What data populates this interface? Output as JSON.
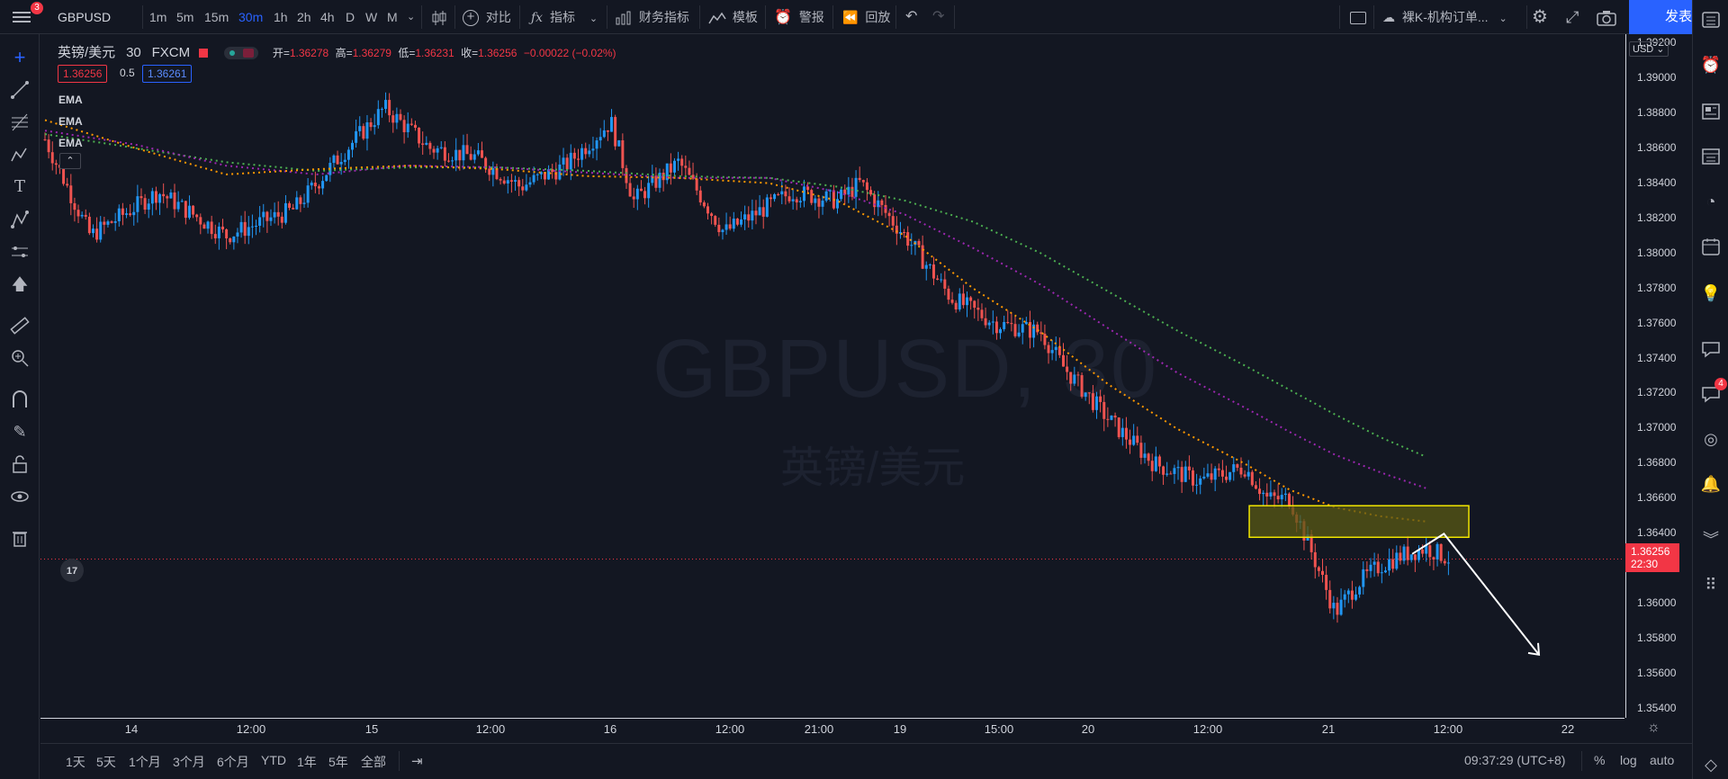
{
  "topbar": {
    "menu_badge": "3",
    "symbol": "GBPUSD",
    "timeframes": [
      "1m",
      "5m",
      "15m",
      "30m",
      "1h",
      "2h",
      "4h",
      "D",
      "W",
      "M"
    ],
    "active_timeframe": "30m",
    "compare_label": "对比",
    "indicators_label": "指标",
    "financials_label": "财务指标",
    "templates_label": "模板",
    "alert_label": "警报",
    "replay_label": "回放",
    "layout_name": "裸K-机构订单...",
    "publish_label": "发表"
  },
  "legend": {
    "title": "英镑/美元",
    "interval": "30",
    "exchange": "FXCM",
    "open_label": "开=",
    "open": "1.36278",
    "high_label": "高=",
    "high": "1.36279",
    "low_label": "低=",
    "low": "1.36231",
    "close_label": "收=",
    "close": "1.36256",
    "change": "−0.00022 (−0.02%)",
    "bid": "1.36256",
    "spread": "0.5",
    "ask": "1.36261",
    "ema_labels": [
      "EMA",
      "EMA",
      "EMA"
    ]
  },
  "watermark": {
    "symbol": "GBPUSD, 30",
    "name": "英镑/美元"
  },
  "price_scale": {
    "currency": "USD",
    "labels": [
      "1.39200",
      "1.39000",
      "1.38800",
      "1.38600",
      "1.38400",
      "1.38200",
      "1.38000",
      "1.37800",
      "1.37600",
      "1.37400",
      "1.37200",
      "1.37000",
      "1.36800",
      "1.36600",
      "1.36400",
      "1.36000",
      "1.35800",
      "1.35600",
      "1.35400"
    ],
    "current_price": "1.36256",
    "countdown": "22:30"
  },
  "time_axis": {
    "labels": [
      "14",
      "12:00",
      "15",
      "12:00",
      "16",
      "12:00",
      "21:00",
      "19",
      "15:00",
      "20",
      "12:00",
      "21",
      "12:00",
      "22"
    ]
  },
  "bottom": {
    "ranges": [
      "1天",
      "5天",
      "1个月",
      "3个月",
      "6个月",
      "YTD",
      "1年",
      "5年",
      "全部"
    ],
    "clock": "09:37:29 (UTC+8)",
    "percent": "%",
    "log": "log",
    "auto": "auto"
  },
  "right_toolbar": {
    "chat_badge": "4"
  },
  "colors": {
    "up": "#2196f3",
    "down": "#ef5350",
    "ema_fast": "#ff9800",
    "ema_mid": "#9c27b0",
    "ema_slow": "#4caf50",
    "zone_fill": "#5a5a14",
    "zone_stroke": "#f2e600",
    "accent": "#2962ff"
  },
  "chart_data": {
    "type": "candlestick",
    "ylim": [
      1.354,
      1.3925
    ],
    "zone": {
      "top": 1.3656,
      "bottom": 1.3638
    },
    "ema_fast": [
      [
        0,
        1.3876
      ],
      [
        4,
        1.386
      ],
      [
        8,
        1.3845
      ],
      [
        12,
        1.3848
      ],
      [
        16,
        1.385
      ],
      [
        20,
        1.3848
      ],
      [
        24,
        1.3844
      ],
      [
        28,
        1.3843
      ],
      [
        32,
        1.384
      ],
      [
        35,
        1.383
      ],
      [
        38,
        1.381
      ],
      [
        41,
        1.378
      ],
      [
        44,
        1.3755
      ],
      [
        47,
        1.3725
      ],
      [
        50,
        1.37
      ],
      [
        53,
        1.368
      ],
      [
        55,
        1.3665
      ],
      [
        57,
        1.3655
      ],
      [
        59,
        1.365
      ],
      [
        61,
        1.3647
      ]
    ],
    "ema_mid": [
      [
        0,
        1.387
      ],
      [
        4,
        1.3862
      ],
      [
        8,
        1.385
      ],
      [
        12,
        1.3845
      ],
      [
        16,
        1.385
      ],
      [
        20,
        1.3849
      ],
      [
        24,
        1.3846
      ],
      [
        28,
        1.3843
      ],
      [
        32,
        1.3843
      ],
      [
        35,
        1.3835
      ],
      [
        38,
        1.3822
      ],
      [
        41,
        1.3803
      ],
      [
        44,
        1.3782
      ],
      [
        47,
        1.3757
      ],
      [
        50,
        1.3732
      ],
      [
        53,
        1.3712
      ],
      [
        55,
        1.3698
      ],
      [
        57,
        1.3685
      ],
      [
        59,
        1.3675
      ],
      [
        61,
        1.3666
      ]
    ],
    "ema_slow": [
      [
        0,
        1.3868
      ],
      [
        4,
        1.386
      ],
      [
        8,
        1.3852
      ],
      [
        12,
        1.3847
      ],
      [
        16,
        1.3849
      ],
      [
        20,
        1.3849
      ],
      [
        24,
        1.3847
      ],
      [
        28,
        1.3844
      ],
      [
        32,
        1.3843
      ],
      [
        35,
        1.3838
      ],
      [
        38,
        1.383
      ],
      [
        41,
        1.3818
      ],
      [
        44,
        1.38
      ],
      [
        47,
        1.3778
      ],
      [
        50,
        1.3756
      ],
      [
        53,
        1.3736
      ],
      [
        55,
        1.3722
      ],
      [
        57,
        1.3708
      ],
      [
        59,
        1.3695
      ],
      [
        61,
        1.3684
      ]
    ],
    "candles_anchor": [
      [
        0,
        1.3865
      ],
      [
        2,
        1.381
      ],
      [
        5,
        1.3835
      ],
      [
        8,
        1.381
      ],
      [
        11,
        1.3825
      ],
      [
        13,
        1.3855
      ],
      [
        15,
        1.3883
      ],
      [
        17,
        1.386
      ],
      [
        19,
        1.3855
      ],
      [
        21,
        1.3838
      ],
      [
        23,
        1.385
      ],
      [
        25,
        1.3875
      ],
      [
        26,
        1.383
      ],
      [
        28,
        1.3852
      ],
      [
        30,
        1.3812
      ],
      [
        33,
        1.3835
      ],
      [
        35,
        1.383
      ],
      [
        36,
        1.384
      ],
      [
        38,
        1.381
      ],
      [
        40,
        1.3775
      ],
      [
        42,
        1.376
      ],
      [
        44,
        1.3755
      ],
      [
        45,
        1.3735
      ],
      [
        47,
        1.3705
      ],
      [
        49,
        1.368
      ],
      [
        51,
        1.367
      ],
      [
        53,
        1.3678
      ],
      [
        54,
        1.366
      ],
      [
        55,
        1.366
      ],
      [
        56,
        1.3628
      ],
      [
        57,
        1.3595
      ],
      [
        58,
        1.3612
      ],
      [
        59,
        1.3622
      ],
      [
        60,
        1.3628
      ],
      [
        61,
        1.3632
      ],
      [
        62,
        1.3626
      ]
    ],
    "arrow": {
      "from": [
        61.8,
        1.364
      ],
      "to": [
        66,
        1.3571
      ]
    }
  }
}
